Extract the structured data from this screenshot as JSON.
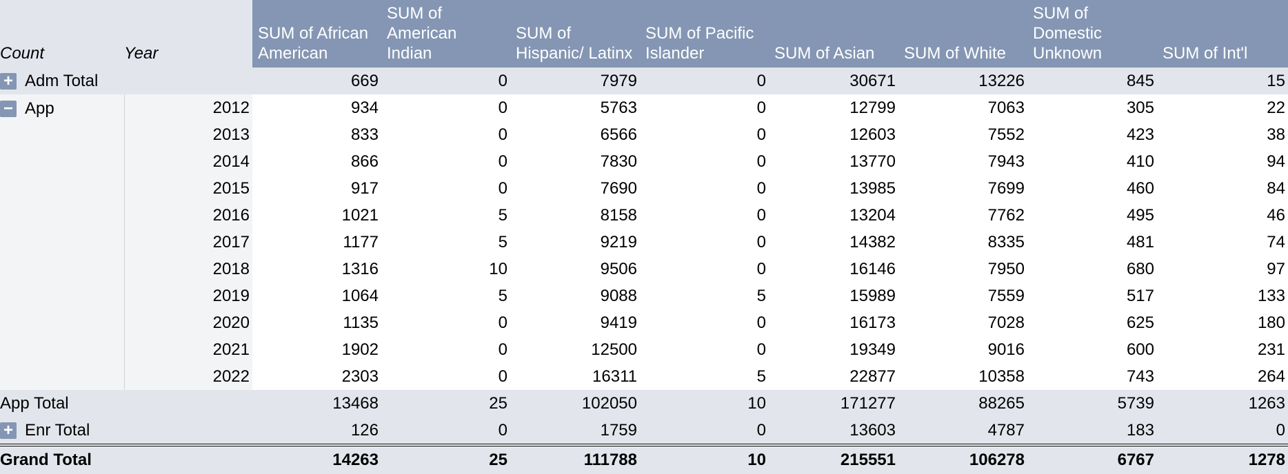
{
  "header": {
    "dims": [
      "Count",
      "Year"
    ],
    "measures": [
      "SUM of African American",
      "SUM of American Indian",
      "SUM of Hispanic/ Latinx",
      "SUM of Pacific Islander",
      "SUM of Asian",
      "SUM of White",
      "SUM of Domestic Unknown",
      "SUM of Int'l"
    ]
  },
  "adm_total": {
    "toggle": "+",
    "label": "Adm Total",
    "values": [
      "669",
      "0",
      "7979",
      "0",
      "30671",
      "13226",
      "845",
      "15"
    ]
  },
  "app": {
    "toggle": "−",
    "label": "App",
    "rows": [
      {
        "year": "2012",
        "values": [
          "934",
          "0",
          "5763",
          "0",
          "12799",
          "7063",
          "305",
          "22"
        ]
      },
      {
        "year": "2013",
        "values": [
          "833",
          "0",
          "6566",
          "0",
          "12603",
          "7552",
          "423",
          "38"
        ]
      },
      {
        "year": "2014",
        "values": [
          "866",
          "0",
          "7830",
          "0",
          "13770",
          "7943",
          "410",
          "94"
        ]
      },
      {
        "year": "2015",
        "values": [
          "917",
          "0",
          "7690",
          "0",
          "13985",
          "7699",
          "460",
          "84"
        ]
      },
      {
        "year": "2016",
        "values": [
          "1021",
          "5",
          "8158",
          "0",
          "13204",
          "7762",
          "495",
          "46"
        ]
      },
      {
        "year": "2017",
        "values": [
          "1177",
          "5",
          "9219",
          "0",
          "14382",
          "8335",
          "481",
          "74"
        ]
      },
      {
        "year": "2018",
        "values": [
          "1316",
          "10",
          "9506",
          "0",
          "16146",
          "7950",
          "680",
          "97"
        ]
      },
      {
        "year": "2019",
        "values": [
          "1064",
          "5",
          "9088",
          "5",
          "15989",
          "7559",
          "517",
          "133"
        ]
      },
      {
        "year": "2020",
        "values": [
          "1135",
          "0",
          "9419",
          "0",
          "16173",
          "7028",
          "625",
          "180"
        ]
      },
      {
        "year": "2021",
        "values": [
          "1902",
          "0",
          "12500",
          "0",
          "19349",
          "9016",
          "600",
          "231"
        ]
      },
      {
        "year": "2022",
        "values": [
          "2303",
          "0",
          "16311",
          "5",
          "22877",
          "10358",
          "743",
          "264"
        ]
      }
    ]
  },
  "app_total": {
    "label": "App Total",
    "values": [
      "13468",
      "25",
      "102050",
      "10",
      "171277",
      "88265",
      "5739",
      "1263"
    ]
  },
  "enr_total": {
    "toggle": "+",
    "label": "Enr Total",
    "values": [
      "126",
      "0",
      "1759",
      "0",
      "13603",
      "4787",
      "183",
      "0"
    ]
  },
  "grand_total": {
    "label": "Grand Total",
    "values": [
      "14263",
      "25",
      "111788",
      "10",
      "215551",
      "106278",
      "6767",
      "1278"
    ]
  }
}
